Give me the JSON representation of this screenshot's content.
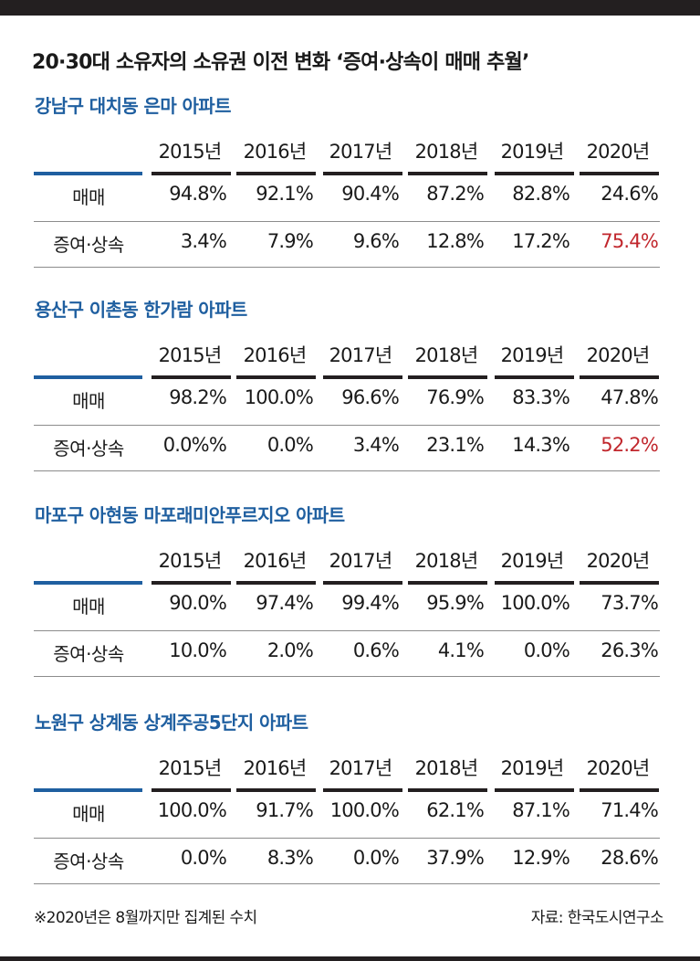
{
  "title": "20·30대 소유자의 소유권 이전 변화 ‘증여·상속이 매매 추월’",
  "footnote": "※2020년은 8월까지만 집계된 수치",
  "source": "자료: 한국도시연구소",
  "highlight_color": "#c1272d",
  "accent_color": "#1f5fa0",
  "chart_data": [
    {
      "type": "table",
      "title": "강남구 대치동 은마 아파트",
      "columns": [
        "2015년",
        "2016년",
        "2017년",
        "2018년",
        "2019년",
        "2020년"
      ],
      "rows": [
        {
          "label": "매매",
          "values": [
            "94.8%",
            "92.1%",
            "90.4%",
            "87.2%",
            "82.8%",
            "24.6%"
          ],
          "highlight": []
        },
        {
          "label": "증여·상속",
          "values": [
            "3.4%",
            "7.9%",
            "9.6%",
            "12.8%",
            "17.2%",
            "75.4%"
          ],
          "highlight": [
            5
          ]
        }
      ]
    },
    {
      "type": "table",
      "title": "용산구 이촌동 한가람 아파트",
      "columns": [
        "2015년",
        "2016년",
        "2017년",
        "2018년",
        "2019년",
        "2020년"
      ],
      "rows": [
        {
          "label": "매매",
          "values": [
            "98.2%",
            "100.0%",
            "96.6%",
            "76.9%",
            "83.3%",
            "47.8%"
          ],
          "highlight": []
        },
        {
          "label": "증여·상속",
          "values": [
            "0.0%%",
            "0.0%",
            "3.4%",
            "23.1%",
            "14.3%",
            "52.2%"
          ],
          "highlight": [
            5
          ]
        }
      ]
    },
    {
      "type": "table",
      "title": "마포구 아현동 마포래미안푸르지오 아파트",
      "columns": [
        "2015년",
        "2016년",
        "2017년",
        "2018년",
        "2019년",
        "2020년"
      ],
      "rows": [
        {
          "label": "매매",
          "values": [
            "90.0%",
            "97.4%",
            "99.4%",
            "95.9%",
            "100.0%",
            "73.7%"
          ],
          "highlight": []
        },
        {
          "label": "증여·상속",
          "values": [
            "10.0%",
            "2.0%",
            "0.6%",
            "4.1%",
            "0.0%",
            "26.3%"
          ],
          "highlight": []
        }
      ]
    },
    {
      "type": "table",
      "title": "노원구 상계동 상계주공5단지 아파트",
      "columns": [
        "2015년",
        "2016년",
        "2017년",
        "2018년",
        "2019년",
        "2020년"
      ],
      "rows": [
        {
          "label": "매매",
          "values": [
            "100.0%",
            "91.7%",
            "100.0%",
            "62.1%",
            "87.1%",
            "71.4%"
          ],
          "highlight": []
        },
        {
          "label": "증여·상속",
          "values": [
            "0.0%",
            "8.3%",
            "0.0%",
            "37.9%",
            "12.9%",
            "28.6%"
          ],
          "highlight": []
        }
      ]
    }
  ]
}
